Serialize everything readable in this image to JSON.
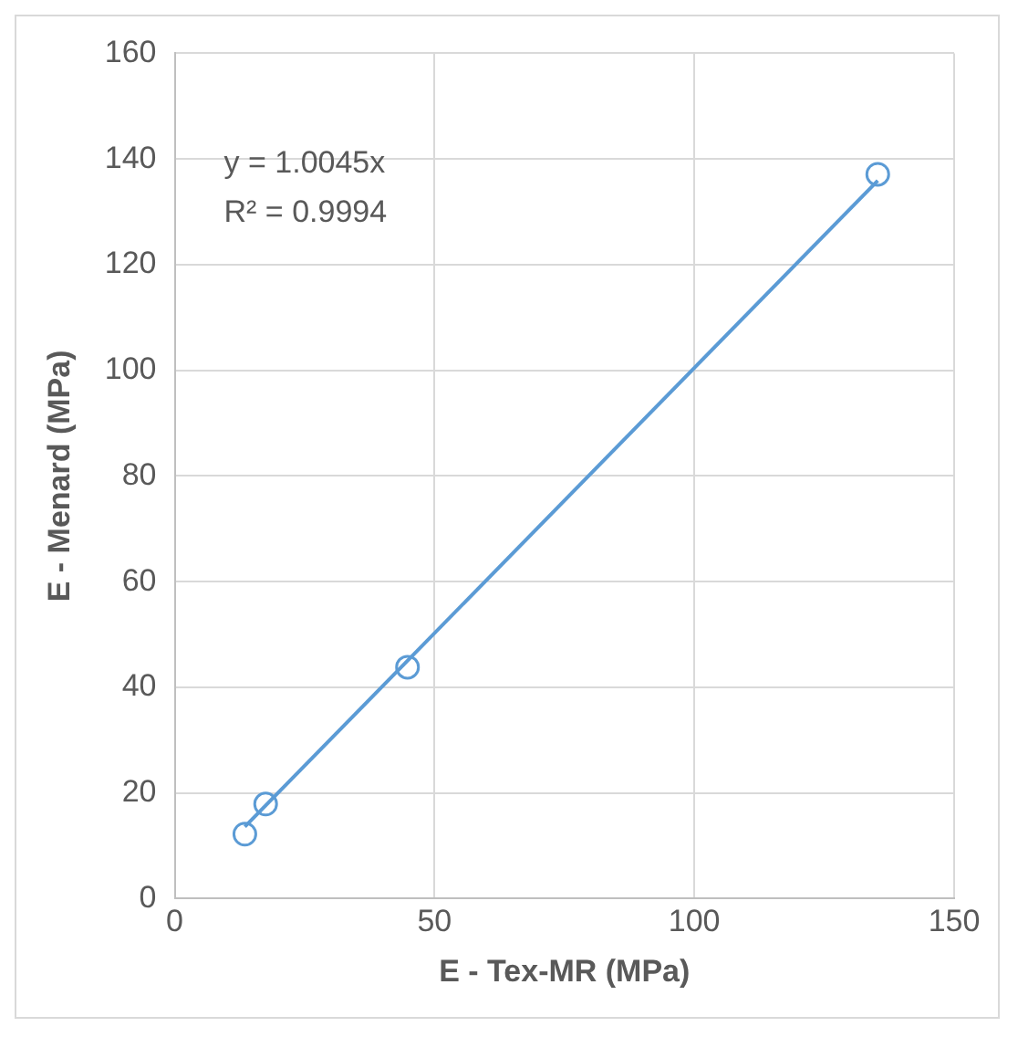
{
  "chart_data": {
    "type": "scatter",
    "xlabel": "E - Tex-MR (MPa)",
    "ylabel": "E - Menard (MPa)",
    "xlim": [
      0,
      150
    ],
    "xticks": [
      0,
      50,
      100,
      150
    ],
    "ylim": [
      0,
      160
    ],
    "yticks": [
      0,
      20,
      40,
      60,
      80,
      100,
      120,
      140,
      160
    ],
    "grid": true,
    "marker": "circle",
    "annotations": [
      "y = 1.0045x",
      "R² = 0.9994"
    ],
    "series": [
      {
        "type": "scatter",
        "color": "#5b9bd5",
        "x": [
          13.5,
          17.5,
          44.8,
          135.3
        ],
        "values": [
          12.2,
          17.9,
          43.8,
          137.1
        ]
      },
      {
        "type": "line",
        "color": "#5b9bd5",
        "x": [
          13.5,
          135.3
        ],
        "values": [
          13.6,
          135.9
        ],
        "marker": "none",
        "line_style": "solid"
      }
    ]
  }
}
